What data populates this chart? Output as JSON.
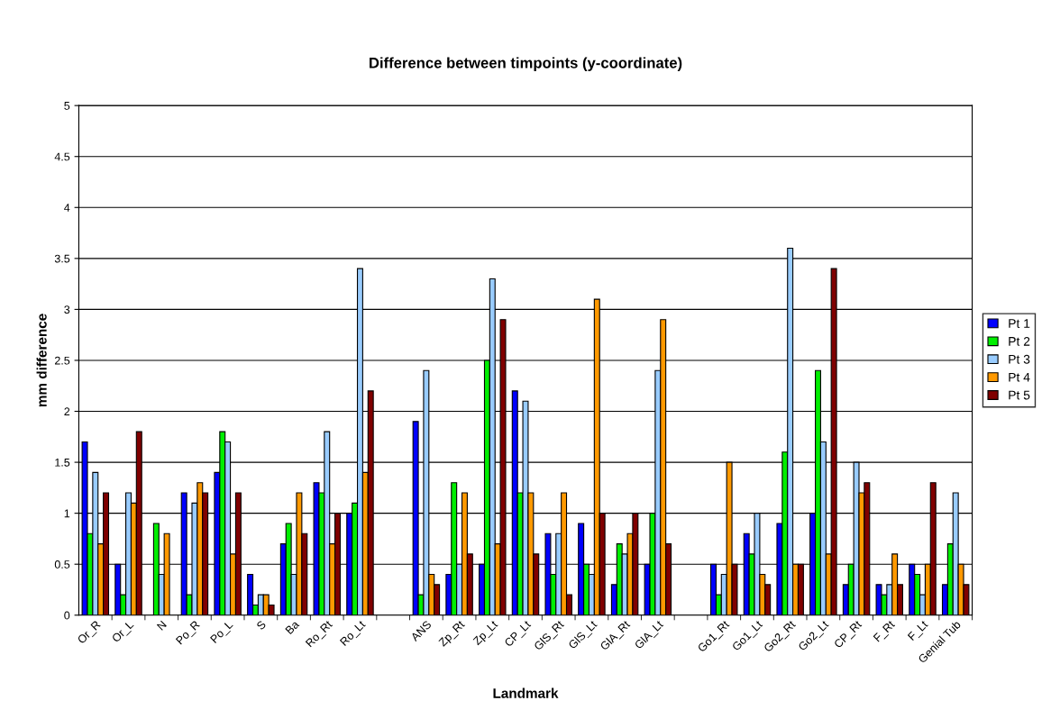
{
  "chart_data": {
    "type": "bar",
    "title": "Difference between timpoints (y-coordinate)",
    "xlabel": "Landmark",
    "ylabel": "mm difference",
    "categories": [
      "Or_R",
      "Or_L",
      "N",
      "Po_R",
      "Po_L",
      "S",
      "Ba",
      "Ro_Rt",
      "Ro_Lt",
      null,
      "ANS",
      "Zp_Rt",
      "Zp_Lt",
      "CP_Lt",
      "GlS_Rt",
      "GlS_Lt",
      "GlA_Rt",
      "GlA_Lt",
      null,
      "Go1_Rt",
      "Go1_Lt",
      "Go2_Rt",
      "Go2_Lt",
      "CP_Rt",
      "F_Rt",
      "F_Lt",
      "Genial Tub"
    ],
    "series": [
      {
        "name": "Pt 1",
        "color": "#0000ff",
        "values": [
          1.7,
          0.5,
          null,
          1.2,
          1.4,
          0.4,
          0.7,
          1.3,
          1.0,
          null,
          1.9,
          0.4,
          0.5,
          2.2,
          0.8,
          0.9,
          0.3,
          0.5,
          null,
          0.5,
          0.8,
          0.9,
          1.0,
          0.3,
          0.3,
          0.5,
          0.3
        ]
      },
      {
        "name": "Pt 2",
        "color": "#00ee00",
        "values": [
          0.8,
          0.2,
          0.9,
          0.2,
          1.8,
          0.1,
          0.9,
          1.2,
          1.1,
          null,
          0.2,
          1.3,
          2.5,
          1.2,
          0.4,
          0.5,
          0.7,
          1.0,
          null,
          0.2,
          0.6,
          1.6,
          2.4,
          0.5,
          0.2,
          0.4,
          0.7
        ]
      },
      {
        "name": "Pt 3",
        "color": "#99ccff",
        "values": [
          1.4,
          1.2,
          0.4,
          1.1,
          1.7,
          0.2,
          0.4,
          1.8,
          3.4,
          null,
          2.4,
          0.5,
          3.3,
          2.1,
          0.8,
          0.4,
          0.6,
          2.4,
          null,
          0.4,
          1.0,
          3.6,
          1.7,
          1.5,
          0.3,
          0.2,
          1.2
        ]
      },
      {
        "name": "Pt 4",
        "color": "#ff9900",
        "values": [
          0.7,
          1.1,
          0.8,
          1.3,
          0.6,
          0.2,
          1.2,
          0.7,
          1.4,
          null,
          0.4,
          1.2,
          0.7,
          1.2,
          1.2,
          3.1,
          0.8,
          2.9,
          null,
          1.5,
          0.4,
          0.5,
          0.6,
          1.2,
          0.6,
          0.5,
          0.5
        ]
      },
      {
        "name": "Pt 5",
        "color": "#800000",
        "values": [
          1.2,
          1.8,
          null,
          1.2,
          1.2,
          0.1,
          0.8,
          1.0,
          2.2,
          null,
          0.3,
          0.6,
          2.9,
          0.6,
          0.2,
          1.0,
          1.0,
          0.7,
          null,
          0.5,
          0.3,
          0.5,
          3.4,
          1.3,
          0.3,
          1.3,
          0.3
        ]
      }
    ],
    "ylim": [
      0,
      5
    ],
    "yticks": [
      0,
      0.5,
      1,
      1.5,
      2,
      2.5,
      3,
      3.5,
      4,
      4.5,
      5
    ],
    "grid": "y",
    "legend": "right"
  }
}
